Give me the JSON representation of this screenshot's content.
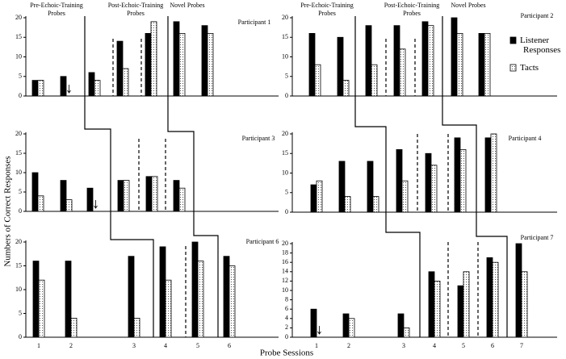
{
  "figure": {
    "ylabel": "Numbers of Correct Responses",
    "xlabel": "Probe Sessions"
  },
  "chart_data": [
    {
      "type": "bar",
      "title": "Participant 1",
      "phase_labels": [
        [
          "Pre-Echoic-Training",
          "Probes"
        ],
        [
          "Post-Echoic-Training",
          "Probes"
        ],
        [
          "Novel Probes"
        ]
      ],
      "categories": [
        null,
        null,
        null,
        null,
        null,
        null,
        null
      ],
      "series": [
        {
          "color": "#000000",
          "values": [
            4,
            5,
            6,
            14,
            16,
            19,
            18
          ]
        },
        {
          "color": "#ffffff",
          "values": [
            4,
            0,
            4,
            7,
            19,
            16,
            16
          ]
        }
      ],
      "ylim": [
        0,
        20
      ],
      "yticks": [
        0,
        5,
        10,
        15,
        20
      ]
    },
    {
      "type": "bar",
      "title": "Participant 2",
      "phase_labels": [
        [
          "Pre-Echoic-Training",
          "Probes"
        ],
        [
          "Post-Echoic-Training",
          "Probes"
        ],
        [
          "Novel Probes"
        ]
      ],
      "categories": [
        null,
        null,
        null,
        null,
        null,
        null,
        null
      ],
      "series": [
        {
          "name": "Listener Responses",
          "color": "#000000",
          "values": [
            16,
            15,
            18,
            18,
            19,
            20,
            16
          ]
        },
        {
          "name": "Tacts",
          "color": "#ffffff",
          "values": [
            8,
            4,
            8,
            12,
            18,
            16,
            16
          ]
        }
      ],
      "ylim": [
        0,
        20
      ],
      "yticks": [
        0,
        5,
        10,
        15,
        20
      ]
    },
    {
      "type": "bar",
      "title": "Participant 3",
      "categories": [
        null,
        null,
        null,
        null,
        null,
        null
      ],
      "series": [
        {
          "color": "#000000",
          "values": [
            10,
            8,
            6,
            8,
            9,
            8
          ]
        },
        {
          "color": "#ffffff",
          "values": [
            4,
            3,
            0,
            8,
            9,
            6
          ]
        }
      ],
      "ylim": [
        0,
        20
      ],
      "yticks": [
        0,
        5,
        10,
        15,
        20
      ]
    },
    {
      "type": "bar",
      "title": "Participant 4",
      "categories": [
        null,
        null,
        null,
        null,
        null,
        null,
        null
      ],
      "series": [
        {
          "color": "#000000",
          "values": [
            7,
            13,
            13,
            16,
            15,
            19,
            19
          ]
        },
        {
          "color": "#ffffff",
          "values": [
            8,
            4,
            4,
            8,
            12,
            16,
            20
          ]
        }
      ],
      "ylim": [
        0,
        20
      ],
      "yticks": [
        0,
        5,
        10,
        15,
        20
      ]
    },
    {
      "type": "bar",
      "title": "Participant 6",
      "categories": [
        1,
        2,
        3,
        4,
        5,
        6
      ],
      "series": [
        {
          "color": "#000000",
          "values": [
            16,
            16,
            17,
            19,
            20,
            17
          ]
        },
        {
          "color": "#ffffff",
          "values": [
            12,
            4,
            4,
            12,
            16,
            15
          ]
        }
      ],
      "ylim": [
        0,
        20
      ],
      "yticks": [
        0,
        5,
        10,
        15,
        20
      ]
    },
    {
      "type": "bar",
      "title": "Participant 7",
      "categories": [
        1,
        2,
        3,
        4,
        5,
        6,
        7
      ],
      "series": [
        {
          "color": "#000000",
          "values": [
            6,
            5,
            5,
            14,
            11,
            17,
            20
          ]
        },
        {
          "color": "#ffffff",
          "values": [
            0,
            4,
            2,
            12,
            14,
            16,
            14
          ]
        }
      ],
      "ylim": [
        0,
        20
      ],
      "yticks": [
        0,
        2,
        4,
        6,
        8,
        10,
        12,
        14,
        16,
        18,
        20
      ]
    }
  ]
}
